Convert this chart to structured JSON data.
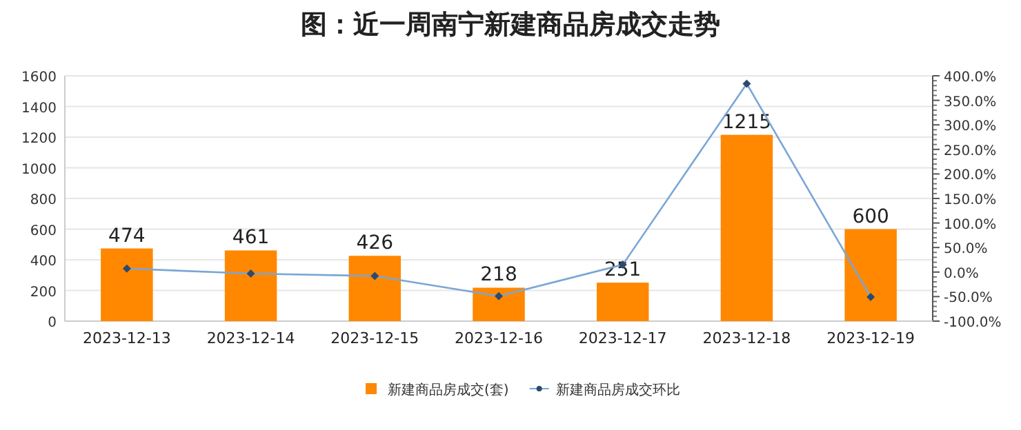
{
  "chart_data": {
    "type": "bar",
    "title": "图：近一周南宁新建商品房成交走势",
    "categories": [
      "2023-12-13",
      "2023-12-14",
      "2023-12-15",
      "2023-12-16",
      "2023-12-17",
      "2023-12-18",
      "2023-12-19"
    ],
    "series": [
      {
        "name": "新建商品房成交(套)",
        "color": "#ff8800",
        "values": [
          474,
          461,
          426,
          218,
          251,
          1215,
          600
        ],
        "value_labels": [
          "474",
          "461",
          "426",
          "218",
          "251",
          "1215",
          "600"
        ]
      },
      {
        "name": "新建商品房成交环比",
        "type": "line",
        "axis": "y2",
        "color": "#7aa6d6",
        "marker": "diamond",
        "values": [
          7,
          -3,
          -8,
          -49,
          15,
          384,
          -51
        ]
      }
    ],
    "ylim": [
      0,
      1600
    ],
    "yticks": [
      0,
      200,
      400,
      600,
      800,
      1000,
      1200,
      1400,
      1600
    ],
    "y2lim": [
      -100,
      400
    ],
    "y2ticks": [
      {
        "value": -100,
        "label": "-100.0%"
      },
      {
        "value": -50,
        "label": "-50.0%"
      },
      {
        "value": 0,
        "label": "0.0%"
      },
      {
        "value": 50,
        "label": "50.0%"
      },
      {
        "value": 100,
        "label": "100.0%"
      },
      {
        "value": 150,
        "label": "150.0%"
      },
      {
        "value": 200,
        "label": "200.0%"
      },
      {
        "value": 250,
        "label": "250.0%"
      },
      {
        "value": 300,
        "label": "300.0%"
      },
      {
        "value": 350,
        "label": "350.0%"
      },
      {
        "value": 400,
        "label": "400.0%"
      }
    ],
    "grid": "y",
    "legend": "bottom"
  }
}
